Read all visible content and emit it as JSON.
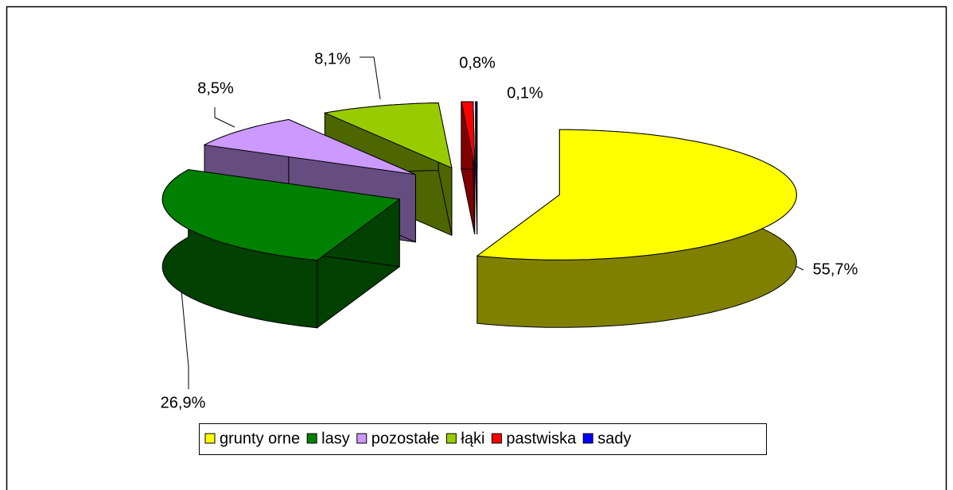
{
  "chart_data": {
    "type": "pie3d",
    "categories": [
      "grunty orne",
      "lasy",
      "pozostałe",
      "łąki",
      "pastwiska",
      "sady"
    ],
    "values": [
      55.7,
      26.9,
      8.5,
      8.1,
      0.8,
      0.1
    ],
    "value_labels": [
      "55,7%",
      "26,9%",
      "8,5%",
      "8,1%",
      "0,8%",
      "0,1%"
    ],
    "colors": [
      "#ffff00",
      "#008000",
      "#cc99ff",
      "#99cc00",
      "#ff0000",
      "#0000ff"
    ],
    "legend": "bottom"
  }
}
